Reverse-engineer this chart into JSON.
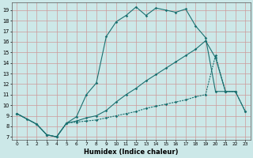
{
  "xlabel": "Humidex (Indice chaleur)",
  "xlim": [
    -0.5,
    23.5
  ],
  "ylim": [
    6.7,
    19.7
  ],
  "yticks": [
    7,
    8,
    9,
    10,
    11,
    12,
    13,
    14,
    15,
    16,
    17,
    18,
    19
  ],
  "xticks": [
    0,
    1,
    2,
    3,
    4,
    5,
    6,
    7,
    8,
    9,
    10,
    11,
    12,
    13,
    14,
    15,
    16,
    17,
    18,
    19,
    20,
    21,
    22,
    23
  ],
  "bg_color": "#cce8e8",
  "grid_color": "#cc9999",
  "line_color": "#1a7070",
  "line1_x": [
    0,
    1,
    2,
    3,
    4,
    5,
    6,
    7,
    8,
    9,
    10,
    11,
    12,
    13,
    14,
    15,
    16,
    17,
    18,
    19,
    20,
    21,
    22
  ],
  "line1_y": [
    9.2,
    8.7,
    8.2,
    7.2,
    7.0,
    8.3,
    8.9,
    11.0,
    12.1,
    16.5,
    17.9,
    18.5,
    19.3,
    18.5,
    19.2,
    19.0,
    18.8,
    19.1,
    17.5,
    16.4,
    11.3,
    11.3,
    11.3
  ],
  "line2_x": [
    0,
    2,
    3,
    4,
    5,
    6,
    7,
    8,
    9,
    10,
    11,
    12,
    13,
    14,
    15,
    16,
    17,
    18,
    19,
    20,
    21,
    22,
    23
  ],
  "line2_y": [
    9.2,
    8.2,
    7.2,
    7.0,
    8.3,
    8.5,
    8.8,
    9.0,
    9.5,
    10.3,
    11.0,
    11.6,
    12.3,
    12.9,
    13.5,
    14.1,
    14.7,
    15.3,
    16.1,
    14.5,
    11.3,
    11.3,
    9.4
  ],
  "line3_x": [
    0,
    2,
    3,
    4,
    5,
    6,
    7,
    8,
    9,
    10,
    11,
    12,
    13,
    14,
    15,
    16,
    17,
    18,
    19,
    20,
    21,
    22,
    23
  ],
  "line3_y": [
    9.2,
    8.2,
    7.2,
    7.0,
    8.3,
    8.4,
    8.5,
    8.6,
    8.8,
    9.0,
    9.2,
    9.4,
    9.7,
    9.9,
    10.1,
    10.3,
    10.5,
    10.8,
    11.0,
    14.7,
    11.3,
    11.3,
    9.4
  ]
}
